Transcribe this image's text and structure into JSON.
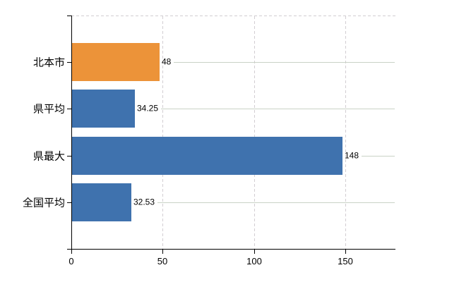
{
  "chart_data": {
    "type": "bar",
    "orientation": "horizontal",
    "title": "",
    "xlabel": "",
    "ylabel": "",
    "categories": [
      "北本市",
      "県平均",
      "県最大",
      "全国平均"
    ],
    "values": [
      48,
      34.25,
      148,
      32.53
    ],
    "value_labels": [
      "48",
      "34.25",
      "148",
      "32.53"
    ],
    "bar_colors": [
      "#ec9339",
      "#3f72ae",
      "#3f72ae",
      "#3f72ae"
    ],
    "x_ticks": [
      0,
      50,
      100,
      150
    ],
    "x_tick_labels": [
      "0",
      "50",
      "100",
      "150"
    ],
    "xlim": [
      0,
      177.5
    ],
    "grid": {
      "vertical_gridlines": "dashed at 50/100/150",
      "top_border": "dashed",
      "value_leader_lines": "solid light line from value label to right edge"
    },
    "legend_position": "none"
  },
  "colors": {
    "background": "#ffffff",
    "axis": "#000000",
    "text": "#000000",
    "bar_orange": "#ec9339",
    "bar_blue": "#3f72ae",
    "vertical_gridline": "#d2ced2",
    "leader_line": "#c9d2c6"
  }
}
